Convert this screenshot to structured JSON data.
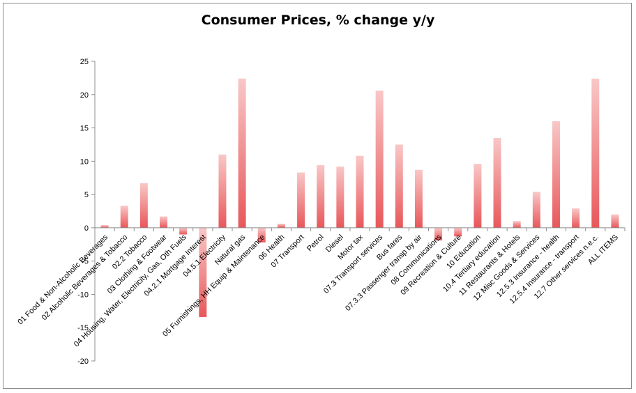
{
  "chart_data": {
    "type": "bar",
    "title": "Consumer Prices, % change y/y",
    "xlabel": "",
    "ylabel": "",
    "ylim": [
      -20,
      25
    ],
    "yticks": [
      25,
      20,
      15,
      10,
      5,
      0,
      -5,
      -10,
      -15,
      -20
    ],
    "grid": false,
    "legend": "none",
    "bar_color": "#e8575a",
    "bar_color_light": "#f9c7c7",
    "categories": [
      "01 Food & Non-Alcoholic Beverages",
      "02 Alcoholic Beverages & Tobacco",
      "02.2 Tobacco",
      "03 Clothing & Footwear",
      "04 Housing, Water, Electricity, Gas, Oth Fuels",
      "04.2.1 Mortgage Interest",
      "04.5.1 Electricity",
      "Natural gas",
      "05 Furnishings, HH Equip & Maintenance",
      "06 Health",
      "07 Transport",
      "Petrol",
      "Diesel",
      "Motor tax",
      "07.3 Transport services",
      "Bus fares",
      "07.3.3 Passenger transp by air",
      "08 Communications",
      "09 Recreation & Culture",
      "10 Education",
      "10.4 Tertiary education",
      "11 Restaurants & Hotels",
      "12 Misc Goods & Services",
      "12.5.3 Insurance - health",
      "12.5.4 Insurance - transport",
      "12.7 Other services n.e.c.",
      "ALL ITEMS"
    ],
    "values": [
      0.4,
      3.3,
      6.7,
      1.7,
      -1.0,
      -13.4,
      11.0,
      22.4,
      -2.2,
      0.6,
      8.3,
      9.4,
      9.2,
      10.8,
      20.6,
      12.5,
      8.7,
      -1.9,
      -1.3,
      9.6,
      13.5,
      1.0,
      5.4,
      16.0,
      2.9,
      22.4,
      2.0
    ]
  }
}
